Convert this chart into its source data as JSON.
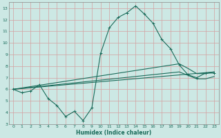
{
  "xlabel": "Humidex (Indice chaleur)",
  "bg_color": "#cce8e4",
  "grid_color": "#add4cf",
  "line_color": "#1a6b5a",
  "xlim": [
    -0.5,
    23.5
  ],
  "ylim": [
    3,
    13.5
  ],
  "yticks": [
    3,
    4,
    5,
    6,
    7,
    8,
    9,
    10,
    11,
    12,
    13
  ],
  "xticks": [
    0,
    1,
    2,
    3,
    4,
    5,
    6,
    7,
    8,
    9,
    10,
    11,
    12,
    13,
    14,
    15,
    16,
    17,
    18,
    19,
    20,
    21,
    22,
    23
  ],
  "line1_x": [
    0,
    1,
    2,
    3,
    4,
    5,
    6,
    7,
    8,
    9,
    10,
    11,
    12,
    13,
    14,
    15,
    16,
    17,
    18,
    19,
    20,
    21,
    22,
    23
  ],
  "line1_y": [
    6.0,
    5.7,
    5.85,
    6.4,
    5.2,
    4.6,
    3.65,
    4.1,
    3.3,
    4.4,
    9.1,
    11.3,
    12.2,
    12.6,
    13.2,
    12.5,
    11.7,
    10.3,
    9.5,
    8.1,
    7.25,
    7.0,
    7.4,
    7.4
  ],
  "line2_x": [
    0,
    23
  ],
  "line2_y": [
    6.0,
    7.5
  ],
  "line3_x": [
    0,
    19,
    20,
    21,
    22,
    23
  ],
  "line3_y": [
    6.0,
    8.2,
    7.8,
    7.35,
    7.35,
    7.5
  ],
  "line4_x": [
    0,
    19,
    20,
    21,
    22,
    23
  ],
  "line4_y": [
    6.0,
    7.5,
    7.2,
    6.9,
    6.9,
    7.1
  ]
}
